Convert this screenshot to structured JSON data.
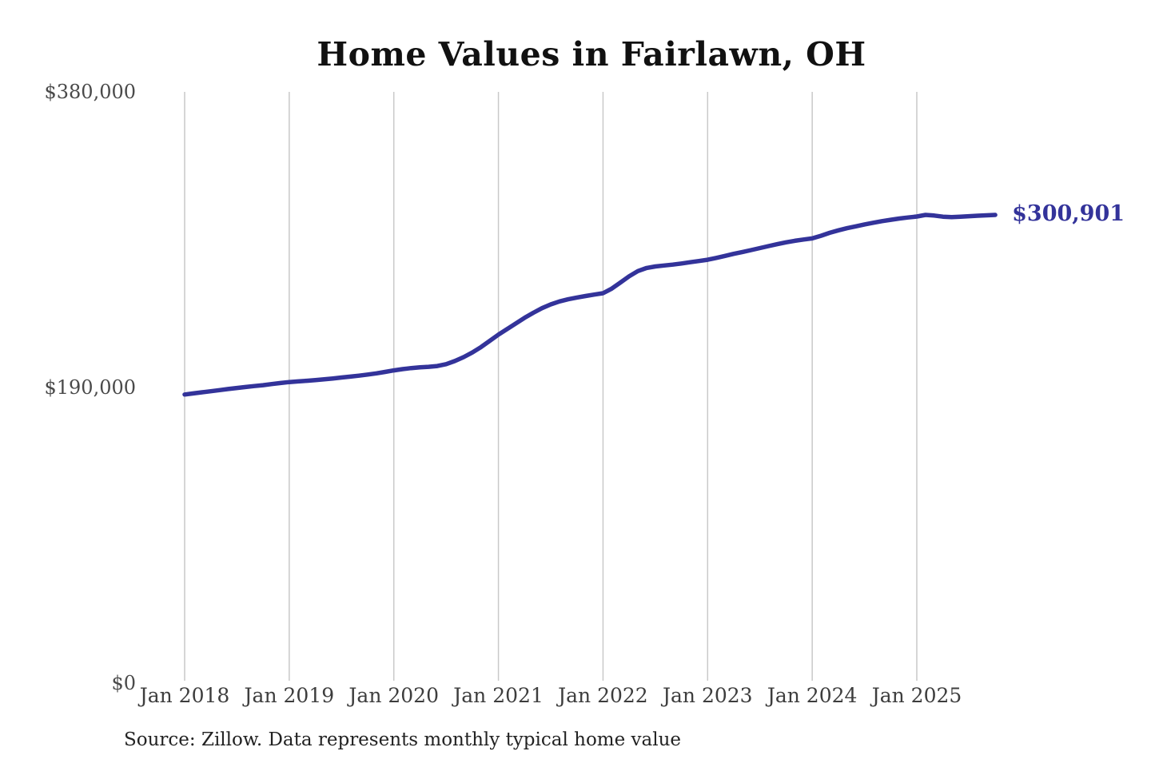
{
  "title": "Home Values in Fairlawn, OH",
  "source_note": "Source: Zillow. Data represents monthly typical home value",
  "colors": {
    "background": "#ffffff",
    "line": "#33339a",
    "end_label": "#33339a",
    "gridline": "#c9c9c9",
    "y_tick_text": "#4a4a4a",
    "x_tick_text": "#3d3d3d",
    "title_text": "#111111",
    "source_text": "#222222"
  },
  "chart_data": {
    "type": "line",
    "title": "Home Values in Fairlawn, OH",
    "series_name": "Monthly typical home value",
    "unit": "USD",
    "grid": "vertical-only",
    "legend": "none",
    "ylim": [
      0,
      380000
    ],
    "y_ticks": [
      {
        "value": 380000,
        "label": "$380,000"
      },
      {
        "value": 190000,
        "label": "$190,000"
      },
      {
        "value": 0,
        "label": "$0"
      }
    ],
    "x_tick_labels": [
      "Jan 2018",
      "Jan 2019",
      "Jan 2020",
      "Jan 2021",
      "Jan 2022",
      "Jan 2023",
      "Jan 2024",
      "Jan 2025"
    ],
    "x_tick_month_indices": [
      0,
      12,
      24,
      36,
      48,
      60,
      72,
      84
    ],
    "last_value": 300901,
    "last_value_label": "$300,901",
    "x": [
      "2018-01",
      "2018-02",
      "2018-03",
      "2018-04",
      "2018-05",
      "2018-06",
      "2018-07",
      "2018-08",
      "2018-09",
      "2018-10",
      "2018-11",
      "2018-12",
      "2019-01",
      "2019-02",
      "2019-03",
      "2019-04",
      "2019-05",
      "2019-06",
      "2019-07",
      "2019-08",
      "2019-09",
      "2019-10",
      "2019-11",
      "2019-12",
      "2020-01",
      "2020-02",
      "2020-03",
      "2020-04",
      "2020-05",
      "2020-06",
      "2020-07",
      "2020-08",
      "2020-09",
      "2020-10",
      "2020-11",
      "2020-12",
      "2021-01",
      "2021-02",
      "2021-03",
      "2021-04",
      "2021-05",
      "2021-06",
      "2021-07",
      "2021-08",
      "2021-09",
      "2021-10",
      "2021-11",
      "2021-12",
      "2022-01",
      "2022-02",
      "2022-03",
      "2022-04",
      "2022-05",
      "2022-06",
      "2022-07",
      "2022-08",
      "2022-09",
      "2022-10",
      "2022-11",
      "2022-12",
      "2023-01",
      "2023-02",
      "2023-03",
      "2023-04",
      "2023-05",
      "2023-06",
      "2023-07",
      "2023-08",
      "2023-09",
      "2023-10",
      "2023-11",
      "2023-12",
      "2024-01",
      "2024-02",
      "2024-03",
      "2024-04",
      "2024-05",
      "2024-06",
      "2024-07",
      "2024-08",
      "2024-09",
      "2024-10",
      "2024-11",
      "2024-12",
      "2025-01",
      "2025-02",
      "2025-03",
      "2025-04",
      "2025-05",
      "2025-06",
      "2025-07",
      "2025-08",
      "2025-09",
      "2025-10"
    ],
    "values": [
      185500,
      186200,
      186900,
      187600,
      188300,
      189000,
      189700,
      190300,
      190900,
      191500,
      192200,
      192900,
      193500,
      193900,
      194300,
      194800,
      195300,
      195800,
      196400,
      197000,
      197600,
      198300,
      199100,
      200000,
      201000,
      201800,
      202500,
      203000,
      203300,
      203800,
      205000,
      207000,
      209500,
      212500,
      216000,
      220000,
      224000,
      227600,
      231200,
      234800,
      238000,
      241000,
      243400,
      245300,
      246700,
      247800,
      248800,
      249700,
      250600,
      253500,
      257500,
      261500,
      264800,
      266800,
      267800,
      268400,
      269000,
      269700,
      270500,
      271300,
      272100,
      273300,
      274600,
      275900,
      277100,
      278300,
      279600,
      280900,
      282100,
      283300,
      284300,
      285100,
      285800,
      287500,
      289400,
      291000,
      292400,
      293600,
      294800,
      295900,
      296900,
      297800,
      298600,
      299300,
      299900,
      300900,
      300500,
      299800,
      299500,
      299800,
      300100,
      300400,
      300650,
      300901
    ]
  }
}
